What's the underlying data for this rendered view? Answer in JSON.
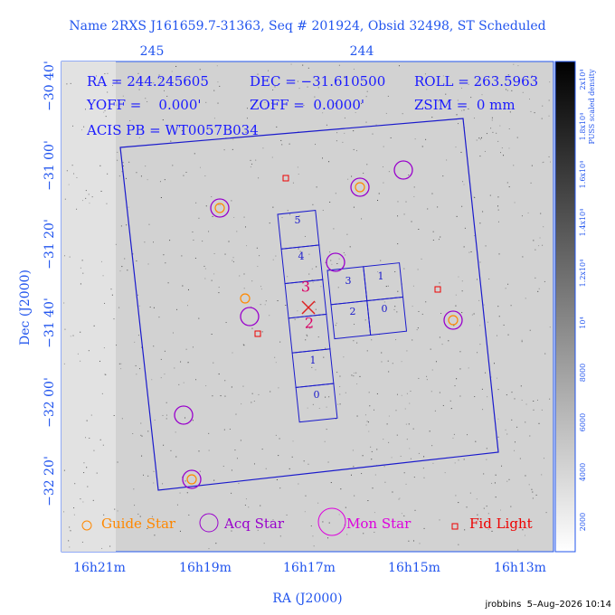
{
  "header": {
    "title": "Name 2RXS J161659.7-31363, Seq # 201924, Obsid 32498, ST Scheduled"
  },
  "info": {
    "rows": [
      [
        "RA = 244.245605",
        "DEC = −31.610500",
        "ROLL = 263.5963"
      ],
      [
        "YOFF =    0.000'",
        "ZOFF =  0.0000'",
        "ZSIM =  0 mm"
      ],
      [
        "ACIS PB = WT0057B034"
      ]
    ]
  },
  "axes": {
    "x_title": "RA (J2000)",
    "y_title": "Dec (J2000)",
    "x_ticks": [
      "16h21m",
      "16h19m",
      "16h17m",
      "16h15m",
      "16h13m"
    ],
    "top_ticks": [
      "245",
      "244"
    ],
    "y_ticks": [
      "−30 40'",
      "−31 00'",
      "−31 20'",
      "−31 40'",
      "−32 00'",
      "−32 20'"
    ]
  },
  "colorbar": {
    "title": "PUSS scaled density",
    "ticks": [
      "2000",
      "4000",
      "6000",
      "8000",
      "10⁴",
      "1.2x10⁴",
      "1.4x10⁴",
      "1.6x10⁴",
      "1.8x10⁴",
      "2x10⁴"
    ]
  },
  "chips": {
    "s_array": [
      "0",
      "1",
      "2",
      "3",
      "4",
      "5"
    ],
    "i_array": [
      "3",
      "1",
      "2",
      "0"
    ]
  },
  "legend": [
    "Guide Star",
    "Acq Star",
    "Mon Star",
    "Fid Light"
  ],
  "footer": "jrobbins  5–Aug–2026 10:14"
}
